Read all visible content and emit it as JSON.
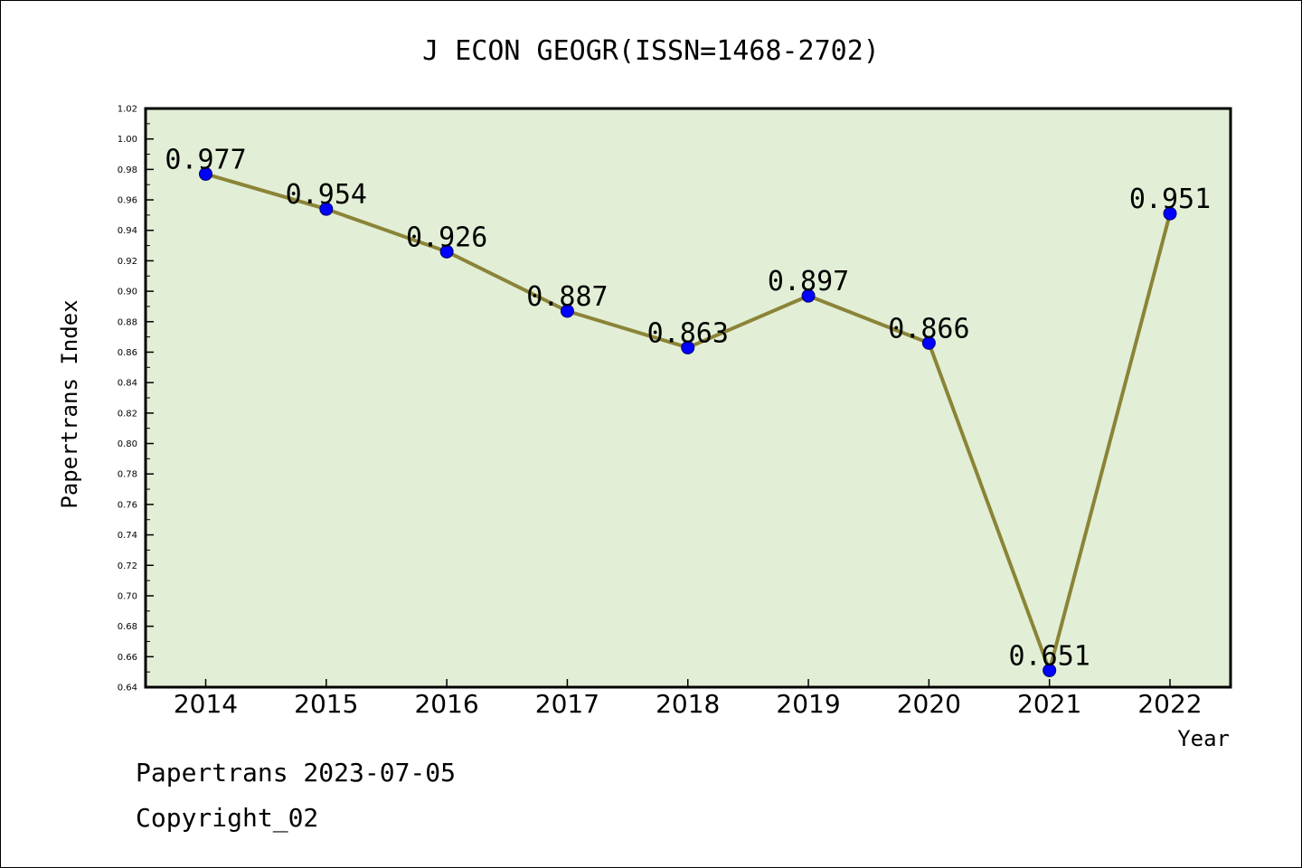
{
  "chart_data": {
    "type": "line",
    "title": "J ECON GEOGR(ISSN=1468-2702)",
    "xlabel": "Year",
    "ylabel": "Papertrans Index",
    "categories": [
      "2014",
      "2015",
      "2016",
      "2017",
      "2018",
      "2019",
      "2020",
      "2021",
      "2022"
    ],
    "series": [
      {
        "values": [
          0.977,
          0.954,
          0.926,
          0.887,
          0.863,
          0.897,
          0.866,
          0.651,
          0.951
        ]
      }
    ],
    "data_labels": [
      "0.977",
      "0.954",
      "0.926",
      "0.887",
      "0.863",
      "0.897",
      "0.866",
      "0.651",
      "0.951"
    ],
    "ylim": [
      0.64,
      1.02
    ],
    "yticks": [
      "0.64",
      "0.66",
      "0.68",
      "0.70",
      "0.72",
      "0.74",
      "0.76",
      "0.78",
      "0.80",
      "0.82",
      "0.84",
      "0.86",
      "0.88",
      "0.90",
      "0.92",
      "0.94",
      "0.96",
      "0.98",
      "1.00",
      "1.02"
    ],
    "grid": false,
    "legend": "none",
    "colors": {
      "plot_background": "#e2efd6",
      "line": "#8b8437",
      "marker": "#0000ff"
    }
  },
  "footer": {
    "line1": "Papertrans 2023-07-05",
    "line2": "Copyright_02"
  }
}
